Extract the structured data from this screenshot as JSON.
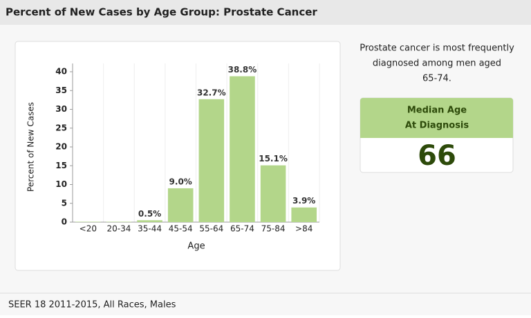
{
  "header": {
    "title": "Percent of New Cases by Age Group: Prostate Cancer"
  },
  "chart_data": {
    "type": "bar",
    "categories": [
      "<20",
      "20-34",
      "35-44",
      "45-54",
      "55-64",
      "65-74",
      "75-84",
      ">84"
    ],
    "values": [
      0.1,
      0.1,
      0.5,
      9.0,
      32.7,
      38.8,
      15.1,
      3.9
    ],
    "value_labels": [
      null,
      null,
      "0.5%",
      "9.0%",
      "32.7%",
      "38.8%",
      "15.1%",
      "3.9%"
    ],
    "color": "#b3d68a",
    "x_label": "Age",
    "y_label": "Percent of New Cases",
    "ylim": [
      0,
      40
    ],
    "yticks": [
      0,
      5,
      10,
      15,
      20,
      25,
      30,
      35,
      40
    ]
  },
  "summary": {
    "lines": [
      "Prostate cancer is most frequently",
      "diagnosed among men aged",
      "65-74."
    ]
  },
  "median": {
    "label_lines": [
      "Median Age",
      "At Diagnosis"
    ],
    "value": 66
  },
  "footer": {
    "text": "SEER 18 2011-2015, All Races, Males"
  }
}
